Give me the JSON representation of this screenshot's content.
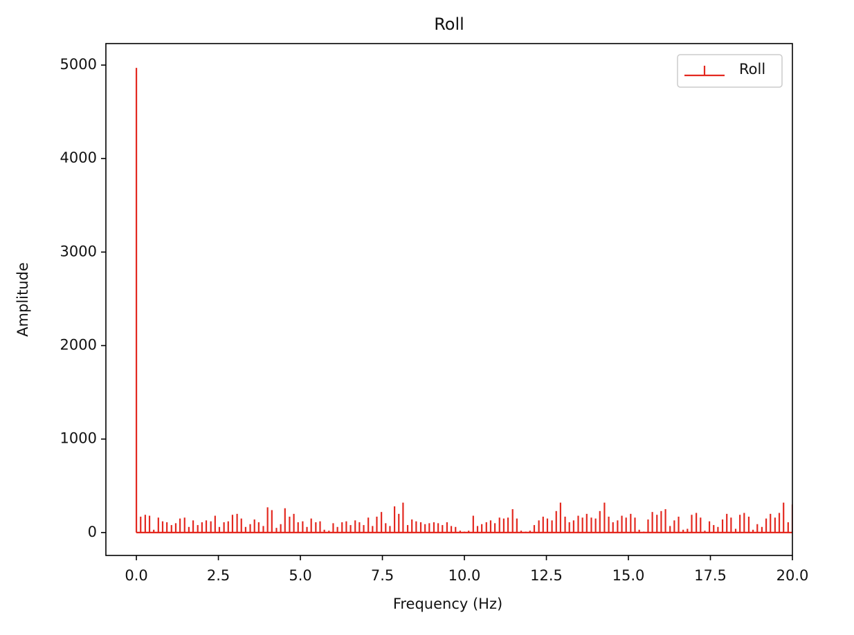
{
  "chart_data": {
    "type": "stem",
    "title": "Roll",
    "xlabel": "Frequency (Hz)",
    "ylabel": "Amplitude",
    "x": [
      0,
      0.13,
      0.27,
      0.4,
      0.53,
      0.67,
      0.8,
      0.93,
      1.07,
      1.2,
      1.33,
      1.47,
      1.6,
      1.73,
      1.87,
      2,
      2.13,
      2.27,
      2.4,
      2.53,
      2.67,
      2.8,
      2.93,
      3.07,
      3.2,
      3.33,
      3.47,
      3.6,
      3.73,
      3.87,
      4,
      4.13,
      4.27,
      4.4,
      4.53,
      4.67,
      4.8,
      4.93,
      5.07,
      5.2,
      5.33,
      5.47,
      5.6,
      5.73,
      5.87,
      6,
      6.13,
      6.27,
      6.4,
      6.53,
      6.67,
      6.8,
      6.93,
      7.07,
      7.2,
      7.33,
      7.47,
      7.6,
      7.73,
      7.87,
      8,
      8.13,
      8.27,
      8.4,
      8.53,
      8.67,
      8.8,
      8.93,
      9.07,
      9.2,
      9.33,
      9.47,
      9.6,
      9.73,
      9.87,
      10,
      10.13,
      10.27,
      10.4,
      10.53,
      10.67,
      10.8,
      10.93,
      11.07,
      11.2,
      11.33,
      11.47,
      11.6,
      11.73,
      11.87,
      12,
      12.13,
      12.27,
      12.4,
      12.53,
      12.67,
      12.8,
      12.93,
      13.07,
      13.2,
      13.33,
      13.47,
      13.6,
      13.73,
      13.87,
      14,
      14.13,
      14.27,
      14.4,
      14.53,
      14.67,
      14.8,
      14.93,
      15.07,
      15.2,
      15.33,
      15.47,
      15.6,
      15.73,
      15.87,
      16,
      16.13,
      16.27,
      16.4,
      16.53,
      16.67,
      16.8,
      16.93,
      17.07,
      17.2,
      17.33,
      17.47,
      17.6,
      17.73,
      17.87,
      18,
      18.13,
      18.27,
      18.4,
      18.53,
      18.67,
      18.8,
      18.93,
      19.07,
      19.2,
      19.33,
      19.47,
      19.6,
      19.73,
      19.87,
      20
    ],
    "series": [
      {
        "name": "Roll",
        "color": "#e3281f",
        "values": [
          4970,
          170,
          190,
          180,
          30,
          160,
          120,
          110,
          80,
          100,
          150,
          160,
          60,
          130,
          80,
          110,
          130,
          120,
          180,
          60,
          110,
          120,
          190,
          200,
          150,
          60,
          90,
          140,
          110,
          70,
          270,
          240,
          50,
          90,
          260,
          170,
          200,
          110,
          120,
          60,
          150,
          110,
          120,
          30,
          20,
          100,
          60,
          110,
          120,
          80,
          130,
          110,
          80,
          160,
          70,
          170,
          220,
          100,
          70,
          280,
          200,
          320,
          80,
          140,
          120,
          110,
          90,
          100,
          110,
          100,
          80,
          110,
          70,
          60,
          20,
          10,
          20,
          180,
          70,
          90,
          110,
          130,
          100,
          160,
          150,
          160,
          250,
          150,
          20,
          10,
          20,
          80,
          130,
          170,
          150,
          130,
          230,
          320,
          170,
          110,
          130,
          180,
          160,
          200,
          160,
          150,
          230,
          320,
          170,
          110,
          130,
          180,
          160,
          200,
          160,
          30,
          10,
          140,
          220,
          190,
          230,
          250,
          70,
          130,
          170,
          30,
          40,
          190,
          210,
          160,
          20,
          120,
          80,
          60,
          140,
          200,
          160,
          40,
          190,
          210,
          170,
          30,
          90,
          60,
          150,
          200,
          160,
          210,
          320,
          110,
          300
        ]
      }
    ],
    "xlim": [
      -0.93,
      20.0
    ],
    "ylim": [
      -245,
      5230
    ],
    "xticks": [
      {
        "value": 0,
        "label": "0.0"
      },
      2.5,
      {
        "value": 5,
        "label": "5.0"
      },
      7.5,
      {
        "value": 10,
        "label": "10.0"
      },
      12.5,
      {
        "value": 15,
        "label": "15.0"
      },
      17.5,
      {
        "value": 20,
        "label": "20.0"
      }
    ],
    "yticks": [
      0,
      1000,
      2000,
      3000,
      4000,
      5000
    ],
    "legend": "upper right"
  }
}
